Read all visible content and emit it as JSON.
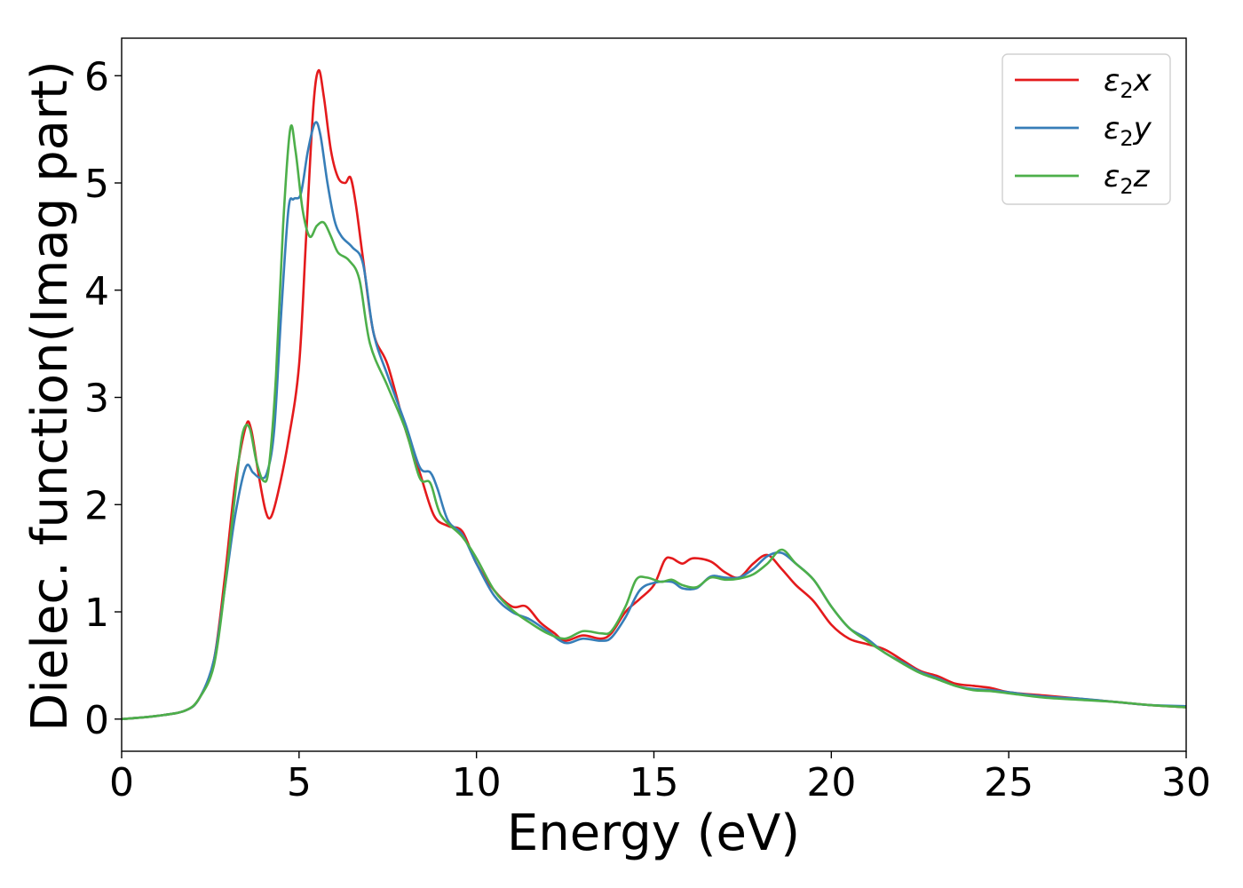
{
  "chart_data": {
    "type": "line",
    "xlabel": "Energy (eV)",
    "ylabel": "Dielec. function(Imag part)",
    "xlim": [
      0,
      30
    ],
    "ylim": [
      -0.3,
      6.35
    ],
    "xticks": [
      0,
      5,
      10,
      15,
      20,
      25,
      30
    ],
    "yticks": [
      0,
      1,
      2,
      3,
      4,
      5,
      6
    ],
    "grid": false,
    "legend_position": "top-right",
    "series": [
      {
        "name": "ε₂x",
        "legend_base": "ε",
        "legend_sub": "2",
        "legend_suffix": "x",
        "color": "#e41a1c",
        "points": [
          [
            0,
            0
          ],
          [
            1,
            0.03
          ],
          [
            1.8,
            0.08
          ],
          [
            2.2,
            0.2
          ],
          [
            2.6,
            0.55
          ],
          [
            2.9,
            1.3
          ],
          [
            3.2,
            2.2
          ],
          [
            3.5,
            2.73
          ],
          [
            3.65,
            2.7
          ],
          [
            3.85,
            2.3
          ],
          [
            4.05,
            1.95
          ],
          [
            4.2,
            1.88
          ],
          [
            4.4,
            2.1
          ],
          [
            4.7,
            2.6
          ],
          [
            5.0,
            3.3
          ],
          [
            5.2,
            4.5
          ],
          [
            5.4,
            5.7
          ],
          [
            5.55,
            6.05
          ],
          [
            5.7,
            5.8
          ],
          [
            5.9,
            5.3
          ],
          [
            6.1,
            5.05
          ],
          [
            6.3,
            5.0
          ],
          [
            6.45,
            5.05
          ],
          [
            6.6,
            4.8
          ],
          [
            6.8,
            4.3
          ],
          [
            7.1,
            3.6
          ],
          [
            7.5,
            3.3
          ],
          [
            8.0,
            2.7
          ],
          [
            8.4,
            2.3
          ],
          [
            8.8,
            1.9
          ],
          [
            9.2,
            1.8
          ],
          [
            9.6,
            1.75
          ],
          [
            10.0,
            1.45
          ],
          [
            10.5,
            1.2
          ],
          [
            11.0,
            1.05
          ],
          [
            11.4,
            1.05
          ],
          [
            11.8,
            0.9
          ],
          [
            12.2,
            0.8
          ],
          [
            12.5,
            0.73
          ],
          [
            13.0,
            0.78
          ],
          [
            13.5,
            0.75
          ],
          [
            13.8,
            0.8
          ],
          [
            14.2,
            1.0
          ],
          [
            14.6,
            1.12
          ],
          [
            15.0,
            1.25
          ],
          [
            15.3,
            1.48
          ],
          [
            15.5,
            1.5
          ],
          [
            15.8,
            1.45
          ],
          [
            16.1,
            1.5
          ],
          [
            16.6,
            1.47
          ],
          [
            17.0,
            1.37
          ],
          [
            17.4,
            1.32
          ],
          [
            17.8,
            1.45
          ],
          [
            18.2,
            1.53
          ],
          [
            18.6,
            1.4
          ],
          [
            19.0,
            1.25
          ],
          [
            19.5,
            1.1
          ],
          [
            20.0,
            0.88
          ],
          [
            20.5,
            0.75
          ],
          [
            21.0,
            0.7
          ],
          [
            21.5,
            0.65
          ],
          [
            22.0,
            0.55
          ],
          [
            22.5,
            0.45
          ],
          [
            23.0,
            0.4
          ],
          [
            23.5,
            0.33
          ],
          [
            24.0,
            0.31
          ],
          [
            24.5,
            0.29
          ],
          [
            25.0,
            0.25
          ],
          [
            26.0,
            0.22
          ],
          [
            27.0,
            0.19
          ],
          [
            28.0,
            0.16
          ],
          [
            29.0,
            0.13
          ],
          [
            30.0,
            0.11
          ]
        ]
      },
      {
        "name": "ε₂y",
        "legend_base": "ε",
        "legend_sub": "2",
        "legend_suffix": "y",
        "color": "#377eb8",
        "points": [
          [
            0,
            0
          ],
          [
            1,
            0.03
          ],
          [
            1.8,
            0.08
          ],
          [
            2.2,
            0.2
          ],
          [
            2.6,
            0.55
          ],
          [
            2.9,
            1.2
          ],
          [
            3.2,
            1.9
          ],
          [
            3.5,
            2.35
          ],
          [
            3.7,
            2.3
          ],
          [
            3.9,
            2.25
          ],
          [
            4.1,
            2.3
          ],
          [
            4.3,
            2.7
          ],
          [
            4.5,
            3.8
          ],
          [
            4.7,
            4.75
          ],
          [
            4.85,
            4.85
          ],
          [
            5.05,
            4.9
          ],
          [
            5.25,
            5.3
          ],
          [
            5.45,
            5.56
          ],
          [
            5.6,
            5.45
          ],
          [
            5.8,
            5.0
          ],
          [
            6.0,
            4.65
          ],
          [
            6.2,
            4.5
          ],
          [
            6.5,
            4.4
          ],
          [
            6.8,
            4.25
          ],
          [
            7.1,
            3.6
          ],
          [
            7.5,
            3.2
          ],
          [
            8.0,
            2.75
          ],
          [
            8.4,
            2.35
          ],
          [
            8.7,
            2.3
          ],
          [
            8.9,
            2.15
          ],
          [
            9.2,
            1.85
          ],
          [
            9.6,
            1.72
          ],
          [
            10.0,
            1.45
          ],
          [
            10.5,
            1.15
          ],
          [
            11.0,
            1.0
          ],
          [
            11.5,
            0.93
          ],
          [
            12.0,
            0.82
          ],
          [
            12.5,
            0.71
          ],
          [
            13.0,
            0.75
          ],
          [
            13.5,
            0.73
          ],
          [
            13.8,
            0.76
          ],
          [
            14.2,
            0.95
          ],
          [
            14.6,
            1.2
          ],
          [
            15.0,
            1.27
          ],
          [
            15.5,
            1.28
          ],
          [
            15.8,
            1.22
          ],
          [
            16.2,
            1.22
          ],
          [
            16.6,
            1.33
          ],
          [
            17.0,
            1.32
          ],
          [
            17.4,
            1.32
          ],
          [
            17.8,
            1.4
          ],
          [
            18.2,
            1.52
          ],
          [
            18.6,
            1.55
          ],
          [
            19.0,
            1.45
          ],
          [
            19.5,
            1.3
          ],
          [
            20.0,
            1.05
          ],
          [
            20.5,
            0.85
          ],
          [
            21.0,
            0.75
          ],
          [
            21.5,
            0.62
          ],
          [
            22.0,
            0.53
          ],
          [
            22.5,
            0.44
          ],
          [
            23.0,
            0.38
          ],
          [
            23.5,
            0.31
          ],
          [
            24.0,
            0.28
          ],
          [
            24.5,
            0.27
          ],
          [
            25.0,
            0.25
          ],
          [
            26.0,
            0.21
          ],
          [
            27.0,
            0.19
          ],
          [
            28.0,
            0.16
          ],
          [
            29.0,
            0.13
          ],
          [
            30.0,
            0.12
          ]
        ]
      },
      {
        "name": "ε₂z",
        "legend_base": "ε",
        "legend_sub": "2",
        "legend_suffix": "z",
        "color": "#4daf4a",
        "points": [
          [
            0,
            0
          ],
          [
            1,
            0.03
          ],
          [
            1.8,
            0.08
          ],
          [
            2.2,
            0.2
          ],
          [
            2.6,
            0.5
          ],
          [
            2.9,
            1.2
          ],
          [
            3.2,
            2.1
          ],
          [
            3.4,
            2.65
          ],
          [
            3.6,
            2.72
          ],
          [
            3.8,
            2.4
          ],
          [
            4.0,
            2.22
          ],
          [
            4.15,
            2.35
          ],
          [
            4.35,
            3.2
          ],
          [
            4.55,
            4.6
          ],
          [
            4.75,
            5.5
          ],
          [
            4.9,
            5.3
          ],
          [
            5.1,
            4.75
          ],
          [
            5.3,
            4.5
          ],
          [
            5.5,
            4.6
          ],
          [
            5.7,
            4.63
          ],
          [
            5.9,
            4.5
          ],
          [
            6.1,
            4.35
          ],
          [
            6.4,
            4.28
          ],
          [
            6.7,
            4.1
          ],
          [
            7.0,
            3.5
          ],
          [
            7.5,
            3.1
          ],
          [
            8.0,
            2.7
          ],
          [
            8.4,
            2.25
          ],
          [
            8.7,
            2.2
          ],
          [
            9.0,
            1.9
          ],
          [
            9.6,
            1.7
          ],
          [
            10.0,
            1.5
          ],
          [
            10.5,
            1.2
          ],
          [
            11.0,
            1.02
          ],
          [
            11.5,
            0.9
          ],
          [
            12.0,
            0.8
          ],
          [
            12.5,
            0.75
          ],
          [
            13.0,
            0.82
          ],
          [
            13.5,
            0.8
          ],
          [
            13.8,
            0.82
          ],
          [
            14.2,
            1.05
          ],
          [
            14.5,
            1.3
          ],
          [
            14.8,
            1.32
          ],
          [
            15.2,
            1.28
          ],
          [
            15.5,
            1.3
          ],
          [
            15.8,
            1.25
          ],
          [
            16.2,
            1.23
          ],
          [
            16.6,
            1.32
          ],
          [
            17.0,
            1.3
          ],
          [
            17.4,
            1.31
          ],
          [
            17.8,
            1.35
          ],
          [
            18.2,
            1.45
          ],
          [
            18.6,
            1.58
          ],
          [
            19.0,
            1.45
          ],
          [
            19.5,
            1.3
          ],
          [
            20.0,
            1.05
          ],
          [
            20.5,
            0.85
          ],
          [
            21.0,
            0.73
          ],
          [
            21.5,
            0.62
          ],
          [
            22.0,
            0.52
          ],
          [
            22.5,
            0.43
          ],
          [
            23.0,
            0.37
          ],
          [
            23.5,
            0.31
          ],
          [
            24.0,
            0.27
          ],
          [
            24.5,
            0.26
          ],
          [
            25.0,
            0.24
          ],
          [
            26.0,
            0.2
          ],
          [
            27.0,
            0.18
          ],
          [
            28.0,
            0.16
          ],
          [
            29.0,
            0.13
          ],
          [
            30.0,
            0.11
          ]
        ]
      }
    ]
  }
}
